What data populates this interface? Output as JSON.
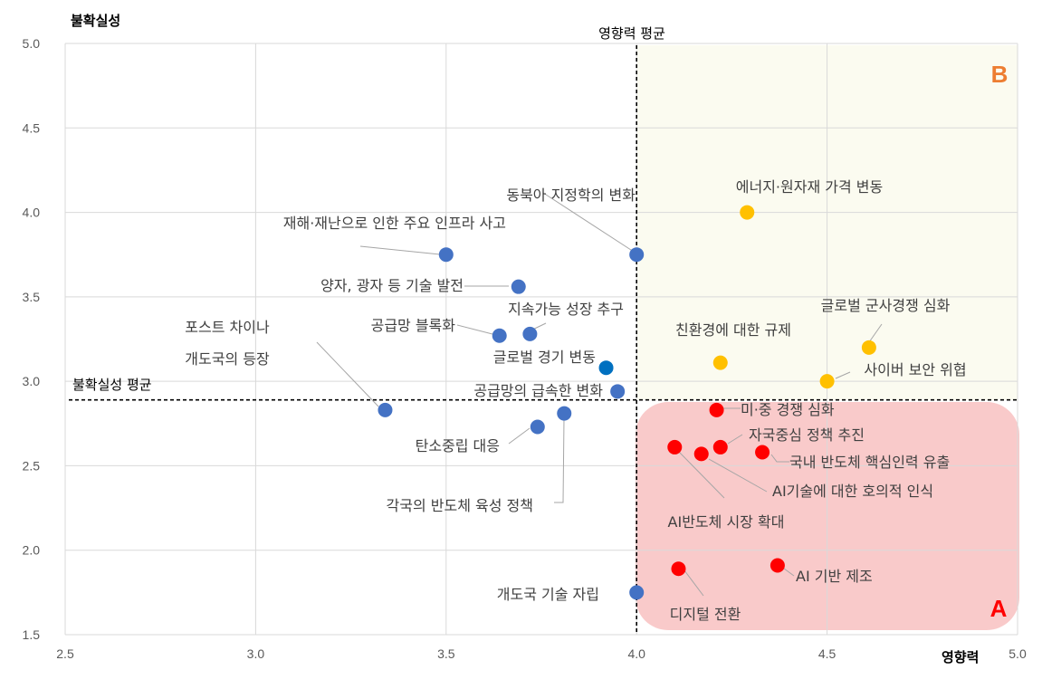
{
  "chart_data": {
    "type": "scatter",
    "ylabel": "불확실성",
    "xlabel": "영향력",
    "xlim": [
      2.5,
      5.0
    ],
    "ylim": [
      1.5,
      5.0
    ],
    "x_ticks": [
      "2.5",
      "3.0",
      "3.5",
      "4.0",
      "4.5",
      "5.0"
    ],
    "y_ticks": [
      "1.5",
      "2.0",
      "2.5",
      "3.0",
      "3.5",
      "4.0",
      "4.5",
      "5.0"
    ],
    "grid": true,
    "reference_lines": {
      "x_mean": {
        "value": 4.0,
        "label": "영향력 평균"
      },
      "y_mean": {
        "value": 2.89,
        "label": "불확실성 평균"
      }
    },
    "zones": [
      {
        "name": "A",
        "color": "#f9caca",
        "text_color": "#ff0000"
      },
      {
        "name": "B",
        "color": "#fbfbf0",
        "text_color": "#ed7d31"
      }
    ],
    "colors": {
      "blue": "#4472c4",
      "dark_blue": "#0070c0",
      "yellow": "#ffc000",
      "red": "#ff0000"
    },
    "points": [
      {
        "label": "동북아 지정학의 변화",
        "x": 4.0,
        "y": 3.75,
        "color": "#4472c4"
      },
      {
        "label": "재해·재난으로 인한 주요 인프라 사고",
        "x": 3.5,
        "y": 3.75,
        "color": "#4472c4"
      },
      {
        "label": "양자, 광자 등 기술 발전",
        "x": 3.69,
        "y": 3.56,
        "color": "#4472c4"
      },
      {
        "label": "지속가능 성장 추구",
        "x": 3.72,
        "y": 3.28,
        "color": "#4472c4"
      },
      {
        "label": "공급망 블록화",
        "x": 3.64,
        "y": 3.27,
        "color": "#4472c4"
      },
      {
        "label": "글로벌 경기 변동",
        "x": 3.92,
        "y": 3.08,
        "color": "#0070c0"
      },
      {
        "label": "공급망의 급속한 변화",
        "x": 3.95,
        "y": 2.94,
        "color": "#4472c4"
      },
      {
        "label": "포스트 차이나",
        "label2": "개도국의 등장",
        "x": 3.34,
        "y": 2.83,
        "color": "#4472c4"
      },
      {
        "label": "탄소중립 대응",
        "x": 3.74,
        "y": 2.73,
        "color": "#4472c4"
      },
      {
        "label": "각국의 반도체 육성 정책",
        "x": 3.81,
        "y": 2.81,
        "color": "#4472c4"
      },
      {
        "label": "개도국 기술 자립",
        "x": 4.0,
        "y": 1.75,
        "color": "#4472c4"
      },
      {
        "label": "에너지·원자재 가격 변동",
        "x": 4.29,
        "y": 4.0,
        "color": "#ffc000"
      },
      {
        "label": "글로벌 군사경쟁 심화",
        "x": 4.61,
        "y": 3.2,
        "color": "#ffc000"
      },
      {
        "label": "친환경에 대한 규제",
        "x": 4.22,
        "y": 3.11,
        "color": "#ffc000"
      },
      {
        "label": "사이버 보안 위협",
        "x": 4.5,
        "y": 3.0,
        "color": "#ffc000"
      },
      {
        "label": "미·중 경쟁 심화",
        "x": 4.21,
        "y": 2.83,
        "color": "#ff0000"
      },
      {
        "label": "자국중심 정책 추진",
        "x": 4.22,
        "y": 2.61,
        "color": "#ff0000"
      },
      {
        "label": "국내 반도체 핵심인력 유출",
        "x": 4.33,
        "y": 2.58,
        "color": "#ff0000"
      },
      {
        "label": "AI기술에 대한 호의적 인식",
        "x": 4.17,
        "y": 2.57,
        "color": "#ff0000"
      },
      {
        "label": "AI반도체 시장 확대",
        "x": 4.1,
        "y": 2.61,
        "color": "#ff0000"
      },
      {
        "label": "AI 기반 제조",
        "x": 4.37,
        "y": 1.91,
        "color": "#ff0000"
      },
      {
        "label": "디지털 전환",
        "x": 4.11,
        "y": 1.89,
        "color": "#ff0000"
      }
    ]
  }
}
